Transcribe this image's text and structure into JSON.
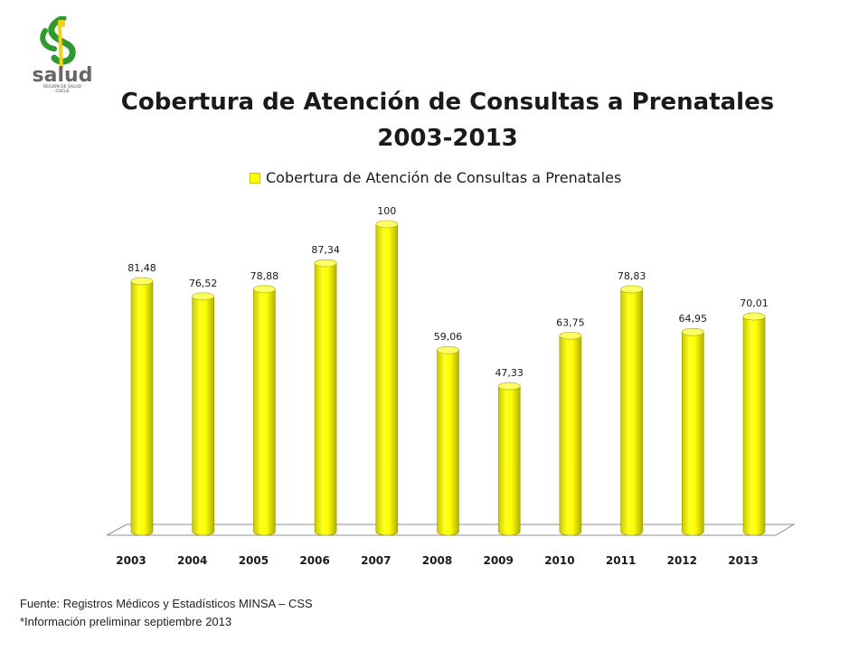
{
  "logo": {
    "text": "salud",
    "subtext": "REGION DE SALUD",
    "subtext2": "COCLE"
  },
  "colors": {
    "bar": "#ffff00",
    "bar_dark": "#b8b800",
    "bar_top": "#ffff66",
    "text": "#1a1a1a"
  },
  "chart_data": {
    "type": "bar",
    "title": "Cobertura de Atención de Consultas a Prenatales",
    "subtitle": "2003-2013",
    "legend": {
      "position": "top",
      "entries": [
        "Cobertura de Atención de Consultas a Prenatales"
      ]
    },
    "categories": [
      "2003",
      "2004",
      "2005",
      "2006",
      "2007",
      "2008",
      "2009",
      "2010",
      "2011",
      "2012",
      "2013"
    ],
    "series": [
      {
        "name": "Cobertura de Atención de Consultas a Prenatales",
        "values": [
          81.48,
          76.52,
          78.88,
          87.34,
          100,
          59.06,
          47.33,
          63.75,
          78.83,
          64.95,
          70.01
        ],
        "labels": [
          "81,48",
          "76,52",
          "78,88",
          "87,34",
          "100",
          "59,06",
          "47,33",
          "63,75",
          "78,83",
          "64,95",
          "70,01"
        ]
      }
    ],
    "ylim": [
      0,
      100
    ],
    "grid": false
  },
  "footer": {
    "source": "Fuente: Registros Médicos y Estadísticos MINSA – CSS",
    "note": "*Información preliminar septiembre 2013"
  }
}
